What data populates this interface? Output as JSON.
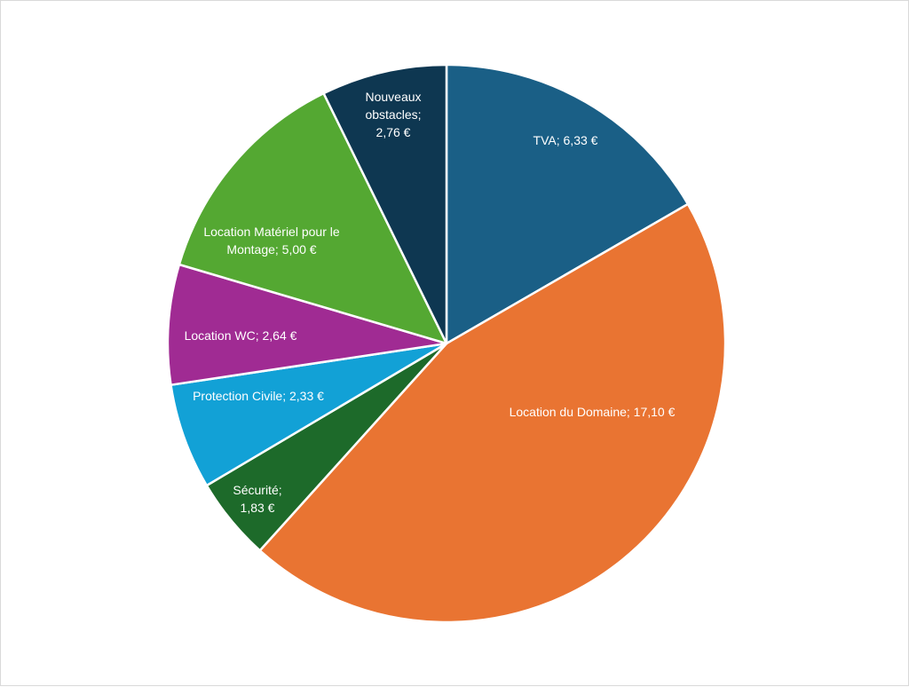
{
  "chart_data": {
    "type": "pie",
    "categories": [
      "TVA",
      "Location du Domaine",
      "Sécurité",
      "Protection Civile",
      "Location WC",
      "Location Matériel pour le Montage",
      "Nouveaux obstacles"
    ],
    "values": [
      6.33,
      17.1,
      1.83,
      2.33,
      2.64,
      5.0,
      2.76
    ],
    "labels": [
      [
        "TVA;  6,33 €"
      ],
      [
        "Location du Domaine;  17,10 €"
      ],
      [
        "Sécurité;",
        "1,83 €"
      ],
      [
        "Protection Civile;  2,33 €"
      ],
      [
        "Location WC;  2,64 €"
      ],
      [
        "Location Matériel pour le",
        "Montage;  5,00 €"
      ],
      [
        "Nouveaux",
        "obstacles;",
        "2,76 €"
      ]
    ],
    "colors": [
      "#1a5f86",
      "#e97432",
      "#1d6a2a",
      "#12a1d6",
      "#a02b93",
      "#54a832",
      "#0e3751"
    ],
    "start_angle_deg": 0,
    "direction": "clockwise",
    "legend": "none",
    "title": ""
  }
}
